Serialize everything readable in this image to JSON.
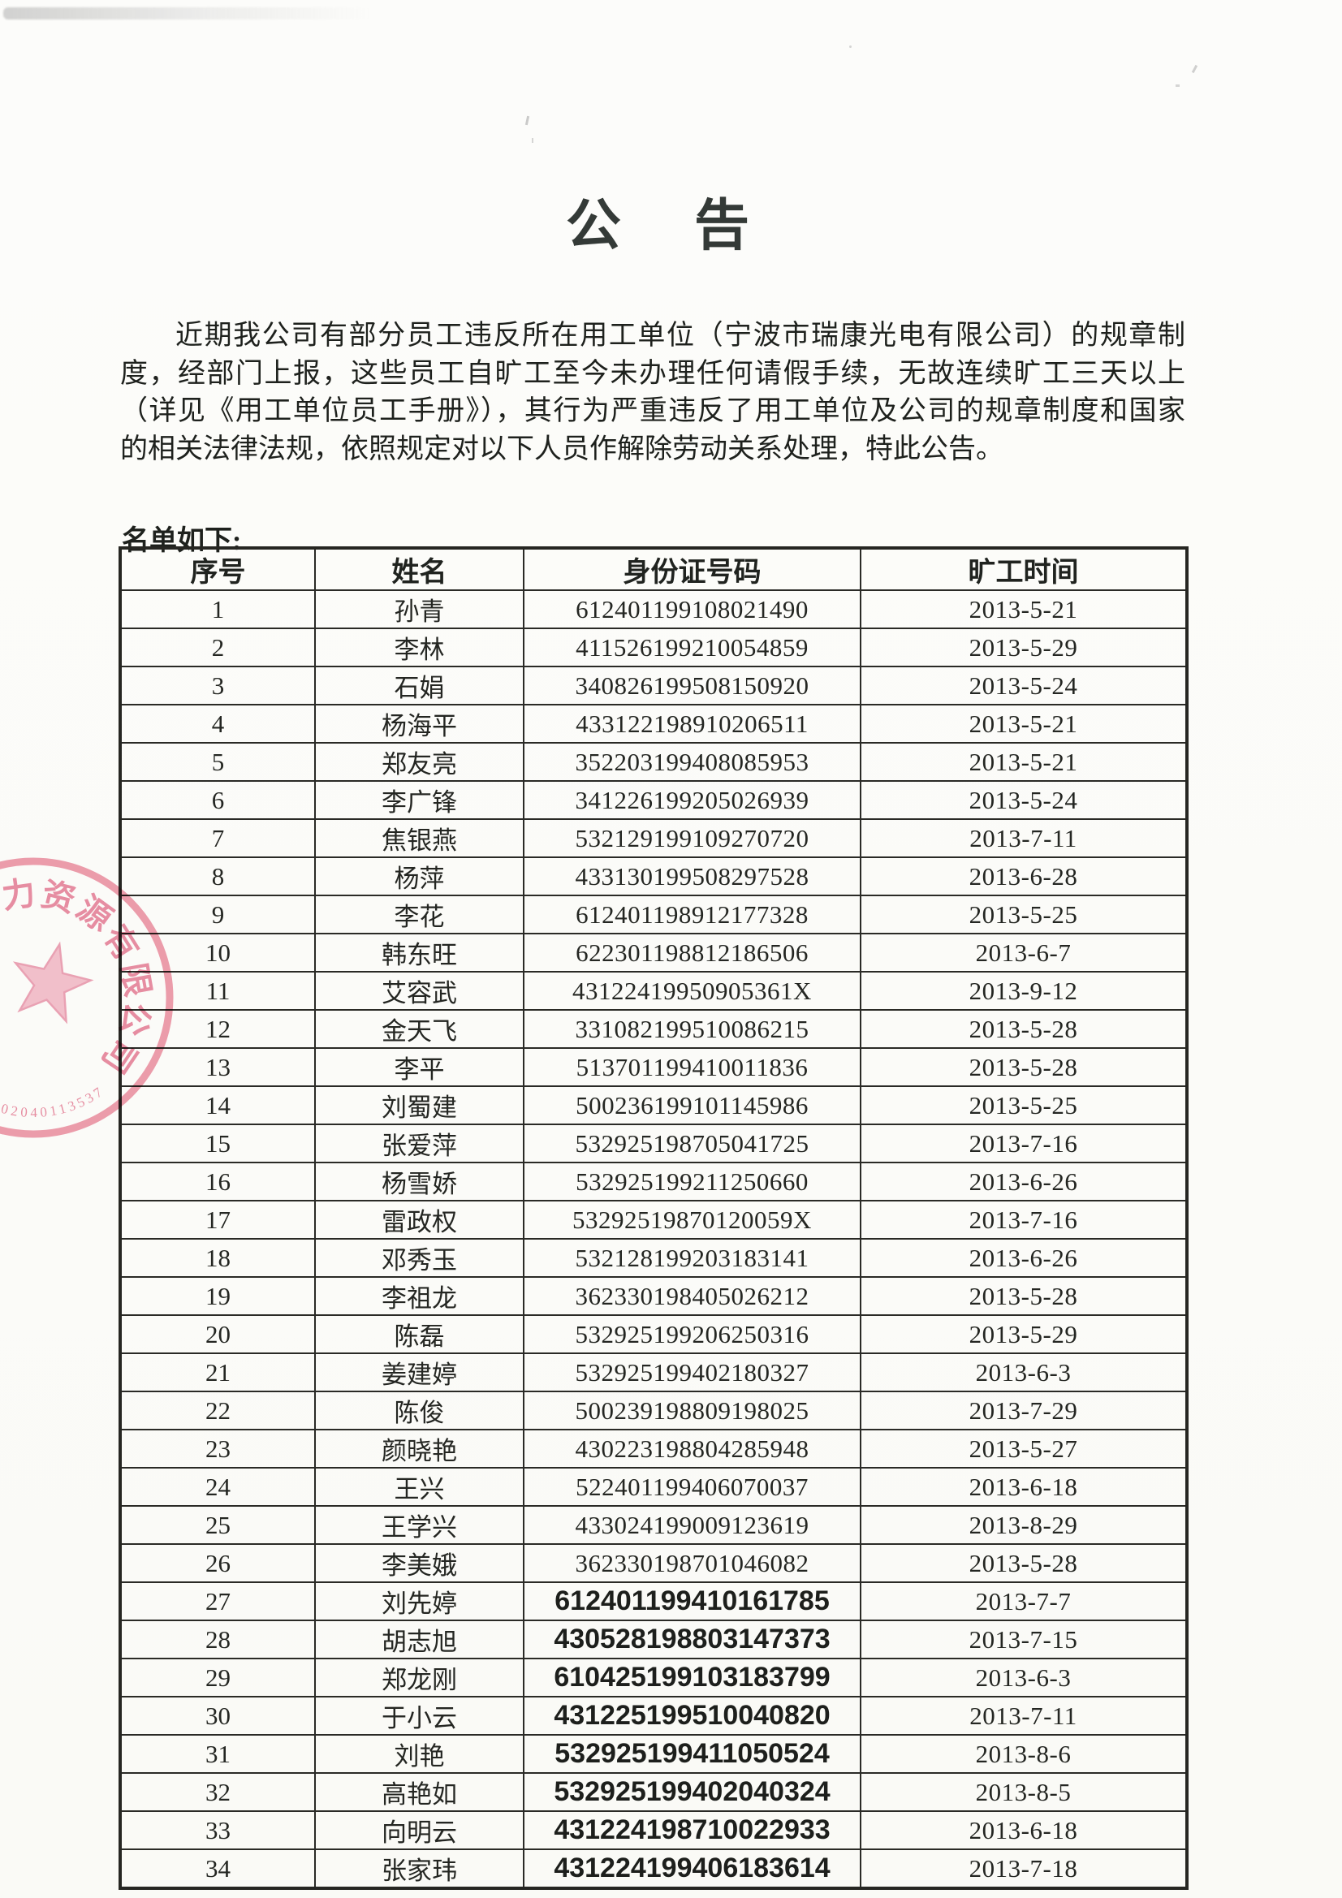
{
  "title": "公　告",
  "announcement": {
    "lines": [
      "近期我公司有部分员工违反所在用工单位（宁波市瑞康光电有限公司）的规章制",
      "度，经部门上报，这些员工自旷工至今未办理任何请假手续，无故连续旷工三天以上",
      "（详见《用工单位员工手册》），其行为严重违反了用工单位及公司的规章制度和国家",
      "的相关法律法规，依照规定对以下人员作解除劳动关系处理，特此公告。"
    ]
  },
  "list_label": "名单如下:",
  "table": {
    "headers": [
      "序号",
      "姓名",
      "身份证号码",
      "旷工时间"
    ],
    "rows": [
      {
        "no": "1",
        "name": "孙青",
        "id": "612401199108021490",
        "date": "2013-5-21",
        "bold": false
      },
      {
        "no": "2",
        "name": "李林",
        "id": "411526199210054859",
        "date": "2013-5-29",
        "bold": false
      },
      {
        "no": "3",
        "name": "石娟",
        "id": "340826199508150920",
        "date": "2013-5-24",
        "bold": false
      },
      {
        "no": "4",
        "name": "杨海平",
        "id": "433122198910206511",
        "date": "2013-5-21",
        "bold": false
      },
      {
        "no": "5",
        "name": "郑友亮",
        "id": "352203199408085953",
        "date": "2013-5-21",
        "bold": false
      },
      {
        "no": "6",
        "name": "李广锋",
        "id": "341226199205026939",
        "date": "2013-5-24",
        "bold": false
      },
      {
        "no": "7",
        "name": "焦银燕",
        "id": "532129199109270720",
        "date": "2013-7-11",
        "bold": false
      },
      {
        "no": "8",
        "name": "杨萍",
        "id": "433130199508297528",
        "date": "2013-6-28",
        "bold": false
      },
      {
        "no": "9",
        "name": "李花",
        "id": "612401198912177328",
        "date": "2013-5-25",
        "bold": false
      },
      {
        "no": "10",
        "name": "韩东旺",
        "id": "622301198812186506",
        "date": "2013-6-7",
        "bold": false
      },
      {
        "no": "11",
        "name": "艾容武",
        "id": "43122419950905361X",
        "date": "2013-9-12",
        "bold": false
      },
      {
        "no": "12",
        "name": "金天飞",
        "id": "331082199510086215",
        "date": "2013-5-28",
        "bold": false
      },
      {
        "no": "13",
        "name": "李平",
        "id": "513701199410011836",
        "date": "2013-5-28",
        "bold": false
      },
      {
        "no": "14",
        "name": "刘蜀建",
        "id": "500236199101145986",
        "date": "2013-5-25",
        "bold": false
      },
      {
        "no": "15",
        "name": "张爱萍",
        "id": "532925198705041725",
        "date": "2013-7-16",
        "bold": false
      },
      {
        "no": "16",
        "name": "杨雪娇",
        "id": "532925199211250660",
        "date": "2013-6-26",
        "bold": false
      },
      {
        "no": "17",
        "name": "雷政权",
        "id": "53292519870120059X",
        "date": "2013-7-16",
        "bold": false
      },
      {
        "no": "18",
        "name": "邓秀玉",
        "id": "532128199203183141",
        "date": "2013-6-26",
        "bold": false
      },
      {
        "no": "19",
        "name": "李祖龙",
        "id": "362330198405026212",
        "date": "2013-5-28",
        "bold": false
      },
      {
        "no": "20",
        "name": "陈磊",
        "id": "532925199206250316",
        "date": "2013-5-29",
        "bold": false
      },
      {
        "no": "21",
        "name": "姜建婷",
        "id": "532925199402180327",
        "date": "2013-6-3",
        "bold": false
      },
      {
        "no": "22",
        "name": "陈俊",
        "id": "500239198809198025",
        "date": "2013-7-29",
        "bold": false
      },
      {
        "no": "23",
        "name": "颜晓艳",
        "id": "430223198804285948",
        "date": "2013-5-27",
        "bold": false
      },
      {
        "no": "24",
        "name": "王兴",
        "id": "522401199406070037",
        "date": "2013-6-18",
        "bold": false
      },
      {
        "no": "25",
        "name": "王学兴",
        "id": "433024199009123619",
        "date": "2013-8-29",
        "bold": false
      },
      {
        "no": "26",
        "name": "李美娥",
        "id": "362330198701046082",
        "date": "2013-5-28",
        "bold": false
      },
      {
        "no": "27",
        "name": "刘先婷",
        "id": "612401199410161785",
        "date": "2013-7-7",
        "bold": true
      },
      {
        "no": "28",
        "name": "胡志旭",
        "id": "430528198803147373",
        "date": "2013-7-15",
        "bold": true
      },
      {
        "no": "29",
        "name": "郑龙刚",
        "id": "610425199103183799",
        "date": "2013-6-3",
        "bold": true
      },
      {
        "no": "30",
        "name": "于小云",
        "id": "431225199510040820",
        "date": "2013-7-11",
        "bold": true
      },
      {
        "no": "31",
        "name": "刘艳",
        "id": "532925199411050524",
        "date": "2013-8-6",
        "bold": true
      },
      {
        "no": "32",
        "name": "高艳如",
        "id": "532925199402040324",
        "date": "2013-8-5",
        "bold": true
      },
      {
        "no": "33",
        "name": "向明云",
        "id": "431224198710022933",
        "date": "2013-6-18",
        "bold": true
      },
      {
        "no": "34",
        "name": "张家玮",
        "id": "431224199406183614",
        "date": "2013-7-18",
        "bold": true
      }
    ]
  },
  "stamp": {
    "arc_chars": [
      "力",
      "资",
      "源",
      "有",
      "限",
      "公",
      "司"
    ],
    "serial": "02040113537",
    "ink_color": "#e4708d",
    "ring_color": "#e8798f",
    "star_fill": "#f3b6c7",
    "star_stroke": "#ea92aa"
  }
}
